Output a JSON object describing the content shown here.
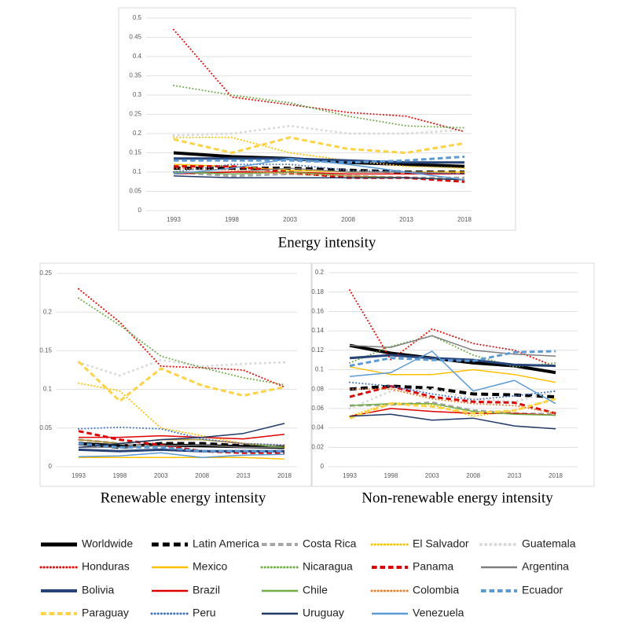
{
  "chart_data": [
    {
      "type": "line",
      "title": "Energy intensity",
      "categories": [
        "1993",
        "1998",
        "2003",
        "2008",
        "2013",
        "2018"
      ],
      "ylim": [
        0,
        0.5
      ],
      "yticks": [
        0,
        0.05,
        0.1,
        0.15,
        0.2,
        0.25,
        0.3,
        0.35,
        0.4,
        0.45,
        0.5
      ],
      "grid": true,
      "series": [
        {
          "name": "Worldwide",
          "color": "#000000",
          "dash": "solid",
          "width": 4,
          "values": [
            0.15,
            0.14,
            0.135,
            0.125,
            0.12,
            0.115
          ]
        },
        {
          "name": "Latin America",
          "color": "#000000",
          "dash": "dash",
          "width": 4,
          "values": [
            0.11,
            0.11,
            0.11,
            0.105,
            0.1,
            0.1
          ]
        },
        {
          "name": "Costa Rica",
          "color": "#a5a5a5",
          "dash": "dash",
          "width": 3,
          "values": [
            0.1,
            0.09,
            0.095,
            0.09,
            0.085,
            0.085
          ]
        },
        {
          "name": "El Salvador",
          "color": "#ffc000",
          "dash": "dot",
          "width": 2,
          "values": [
            0.19,
            0.19,
            0.15,
            0.13,
            0.115,
            0.11
          ]
        },
        {
          "name": "Guatemala",
          "color": "#d9d9d9",
          "dash": "dot",
          "width": 3,
          "values": [
            0.195,
            0.2,
            0.22,
            0.2,
            0.2,
            0.21
          ]
        },
        {
          "name": "Honduras",
          "color": "#ff0000",
          "dash": "dot",
          "width": 2,
          "values": [
            0.47,
            0.295,
            0.275,
            0.255,
            0.245,
            0.205
          ]
        },
        {
          "name": "Mexico",
          "color": "#ffc000",
          "dash": "solid",
          "width": 1.5,
          "values": [
            0.12,
            0.115,
            0.105,
            0.1,
            0.1,
            0.1
          ]
        },
        {
          "name": "Nicaragua",
          "color": "#70ad47",
          "dash": "dot",
          "width": 2,
          "values": [
            0.325,
            0.3,
            0.28,
            0.245,
            0.22,
            0.215
          ]
        },
        {
          "name": "Panama",
          "color": "#e00000",
          "dash": "dash",
          "width": 3,
          "values": [
            0.115,
            0.115,
            0.1,
            0.085,
            0.085,
            0.075
          ]
        },
        {
          "name": "Argentina",
          "color": "#7f7f7f",
          "dash": "solid",
          "width": 1.5,
          "values": [
            0.1,
            0.1,
            0.11,
            0.1,
            0.1,
            0.095
          ]
        },
        {
          "name": "Bolivia",
          "color": "#264478",
          "dash": "solid",
          "width": 3,
          "values": [
            0.135,
            0.135,
            0.135,
            0.13,
            0.125,
            0.125
          ]
        },
        {
          "name": "Brazil",
          "color": "#e00000",
          "dash": "solid",
          "width": 1.5,
          "values": [
            0.095,
            0.1,
            0.1,
            0.095,
            0.095,
            0.095
          ]
        },
        {
          "name": "Chile",
          "color": "#70ad47",
          "dash": "solid",
          "width": 1.5,
          "values": [
            0.1,
            0.095,
            0.1,
            0.09,
            0.085,
            0.08
          ]
        },
        {
          "name": "Colombia",
          "color": "#ed7d31",
          "dash": "dot",
          "width": 2,
          "values": [
            0.11,
            0.105,
            0.095,
            0.09,
            0.085,
            0.08
          ]
        },
        {
          "name": "Ecuador",
          "color": "#5b9bd5",
          "dash": "dash",
          "width": 3,
          "values": [
            0.13,
            0.13,
            0.13,
            0.125,
            0.13,
            0.14
          ]
        },
        {
          "name": "Paraguay",
          "color": "#ffd23f",
          "dash": "dash",
          "width": 3,
          "values": [
            0.185,
            0.15,
            0.19,
            0.16,
            0.15,
            0.175
          ]
        },
        {
          "name": "Peru",
          "color": "#4472c4",
          "dash": "dot",
          "width": 2,
          "values": [
            0.1,
            0.12,
            0.12,
            0.105,
            0.1,
            0.095
          ]
        },
        {
          "name": "Uruguay",
          "color": "#1f3864",
          "dash": "solid",
          "width": 1.5,
          "values": [
            0.09,
            0.085,
            0.085,
            0.085,
            0.085,
            0.08
          ]
        },
        {
          "name": "Venezuela",
          "color": "#5b9bd5",
          "dash": "solid",
          "width": 1.5,
          "values": [
            0.095,
            0.11,
            0.135,
            0.12,
            0.1,
            0.08
          ]
        }
      ]
    },
    {
      "type": "line",
      "title": "Renewable energy intensity",
      "categories": [
        "1993",
        "1998",
        "2003",
        "2008",
        "2013",
        "2018"
      ],
      "ylim": [
        0,
        0.25
      ],
      "yticks": [
        0,
        0.05,
        0.1,
        0.15,
        0.2,
        0.25
      ],
      "grid": true,
      "series": [
        {
          "values": [
            0.03,
            0.027,
            0.028,
            0.027,
            0.026,
            0.025
          ]
        },
        {
          "values": [
            0.03,
            0.025,
            0.03,
            0.03,
            0.027,
            0.025
          ]
        },
        {
          "values": [
            0.035,
            0.03,
            0.025,
            0.02,
            0.02,
            0.02
          ]
        },
        {
          "values": [
            0.108,
            0.098,
            0.05,
            0.04,
            0.03,
            0.025
          ]
        },
        {
          "values": [
            0.135,
            0.118,
            0.138,
            0.13,
            0.133,
            0.135
          ]
        },
        {
          "values": [
            0.23,
            0.187,
            0.13,
            0.128,
            0.125,
            0.103
          ]
        },
        {
          "values": [
            0.012,
            0.012,
            0.012,
            0.012,
            0.012,
            0.01
          ]
        },
        {
          "values": [
            0.218,
            0.183,
            0.143,
            0.128,
            0.115,
            0.106
          ]
        },
        {
          "values": [
            0.046,
            0.035,
            0.028,
            0.02,
            0.018,
            0.018
          ]
        },
        {
          "values": [
            0.025,
            0.025,
            0.027,
            0.028,
            0.025,
            0.025
          ]
        },
        {
          "values": [
            0.022,
            0.02,
            0.022,
            0.02,
            0.02,
            0.02
          ]
        },
        {
          "values": [
            0.038,
            0.038,
            0.04,
            0.038,
            0.036,
            0.042
          ]
        },
        {
          "values": [
            0.035,
            0.03,
            0.035,
            0.035,
            0.03,
            0.025
          ]
        },
        {
          "values": [
            0.035,
            0.03,
            0.035,
            0.035,
            0.03,
            0.028
          ]
        },
        {
          "values": [
            0.03,
            0.025,
            0.025,
            0.02,
            0.02,
            0.02
          ]
        },
        {
          "values": [
            0.136,
            0.085,
            0.127,
            0.105,
            0.092,
            0.103
          ]
        },
        {
          "values": [
            0.049,
            0.051,
            0.049,
            0.036,
            0.03,
            0.028
          ]
        },
        {
          "values": [
            0.025,
            0.03,
            0.035,
            0.038,
            0.043,
            0.056
          ]
        },
        {
          "values": [
            0.013,
            0.014,
            0.018,
            0.012,
            0.015,
            0.016
          ]
        }
      ]
    },
    {
      "type": "line",
      "title": "Non-renewable energy intensity",
      "categories": [
        "1993",
        "1998",
        "2003",
        "2008",
        "2013",
        "2018"
      ],
      "ylim": [
        0,
        0.2
      ],
      "yticks": [
        0,
        0.02,
        0.04,
        0.06,
        0.08,
        0.1,
        0.12,
        0.14,
        0.16,
        0.18,
        0.2
      ],
      "grid": true,
      "series": [
        {
          "values": [
            0.125,
            0.117,
            0.112,
            0.107,
            0.104,
            0.097
          ]
        },
        {
          "values": [
            0.08,
            0.083,
            0.081,
            0.075,
            0.074,
            0.072
          ]
        },
        {
          "values": [
            0.063,
            0.064,
            0.066,
            0.058,
            0.055,
            0.054
          ]
        },
        {
          "values": [
            0.052,
            0.066,
            0.064,
            0.052,
            0.058,
            0.07
          ]
        },
        {
          "values": [
            0.06,
            0.078,
            0.08,
            0.07,
            0.067,
            0.078
          ]
        },
        {
          "values": [
            0.182,
            0.11,
            0.142,
            0.127,
            0.12,
            0.103
          ]
        },
        {
          "values": [
            0.103,
            0.095,
            0.095,
            0.1,
            0.095,
            0.087
          ]
        },
        {
          "values": [
            0.107,
            0.124,
            0.135,
            0.115,
            0.103,
            0.107
          ]
        },
        {
          "values": [
            0.072,
            0.083,
            0.072,
            0.067,
            0.066,
            0.055
          ]
        },
        {
          "values": [
            0.125,
            0.123,
            0.135,
            0.12,
            0.116,
            0.114
          ]
        },
        {
          "values": [
            0.112,
            0.115,
            0.112,
            0.11,
            0.105,
            0.104
          ]
        },
        {
          "values": [
            0.052,
            0.06,
            0.057,
            0.055,
            0.055,
            0.053
          ]
        },
        {
          "values": [
            0.063,
            0.065,
            0.065,
            0.057,
            0.054,
            0.053
          ]
        },
        {
          "values": [
            0.08,
            0.08,
            0.07,
            0.065,
            0.063,
            0.055
          ]
        },
        {
          "values": [
            0.104,
            0.112,
            0.11,
            0.109,
            0.118,
            0.119
          ]
        },
        {
          "values": [
            0.05,
            0.065,
            0.062,
            0.055,
            0.058,
            0.07
          ]
        },
        {
          "values": [
            0.087,
            0.083,
            0.075,
            0.069,
            0.073,
            0.078
          ]
        },
        {
          "values": [
            0.052,
            0.054,
            0.048,
            0.05,
            0.042,
            0.039
          ]
        },
        {
          "values": [
            0.093,
            0.097,
            0.119,
            0.078,
            0.089,
            0.065
          ]
        }
      ]
    }
  ]
}
